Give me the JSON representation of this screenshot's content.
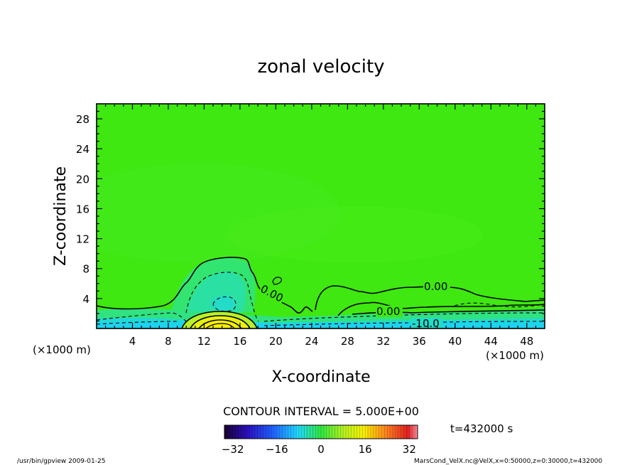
{
  "chart_data": {
    "type": "contour",
    "title": "zonal velocity",
    "xlabel": "X-coordinate",
    "ylabel": "Z-coordinate",
    "x_unit": "(×1000 m)",
    "y_unit": "(×1000 m)",
    "xlim": [
      0,
      50
    ],
    "ylim": [
      0,
      30
    ],
    "x_ticks": [
      "4",
      "8",
      "12",
      "16",
      "20",
      "24",
      "28",
      "32",
      "36",
      "40",
      "44",
      "48"
    ],
    "y_ticks": [
      "4",
      "8",
      "12",
      "16",
      "20",
      "24",
      "28"
    ],
    "x_tick_values": [
      4,
      8,
      12,
      16,
      20,
      24,
      28,
      32,
      36,
      40,
      44,
      48
    ],
    "y_tick_values": [
      4,
      8,
      12,
      16,
      20,
      24,
      28
    ],
    "contour_interval_label": "CONTOUR INTERVAL = 5.000E+00",
    "contour_labels": [
      {
        "text": "0.00",
        "x": 19.5,
        "z": 4.0
      },
      {
        "text": "0.00",
        "x": 38.5,
        "z": 5.5
      },
      {
        "text": "0.00",
        "x": 32.5,
        "z": 2.0
      },
      {
        "text": "-10.0",
        "x": 37.0,
        "z": 0.7
      }
    ],
    "features": [
      {
        "name": "positive jet core",
        "x": 14.5,
        "z": 0.5,
        "max": 30
      },
      {
        "name": "negative region",
        "x": 14.0,
        "z": 3.5,
        "min": -10
      }
    ],
    "colorbar": {
      "ticks": [
        "−32",
        "−16",
        "0",
        "16",
        "32"
      ],
      "tick_values": [
        -32,
        -16,
        0,
        16,
        32
      ],
      "range": [
        -35,
        35
      ]
    },
    "time_label": "t=432000 s",
    "footer_left": "/usr/bin/gpview  2009-01-25",
    "footer_right": "MarsCond_VelX.nc@VelX,x=0:50000,z=0:30000,t=432000"
  },
  "colors": {
    "background_field": "#3fe810",
    "near_zero": "#35e628",
    "negative_light": "#2fe08a",
    "negative_mid": "#26d9b8",
    "negative_strong": "#1fd6e6",
    "positive_light": "#c8f020",
    "positive_strong": "#f0f000"
  }
}
